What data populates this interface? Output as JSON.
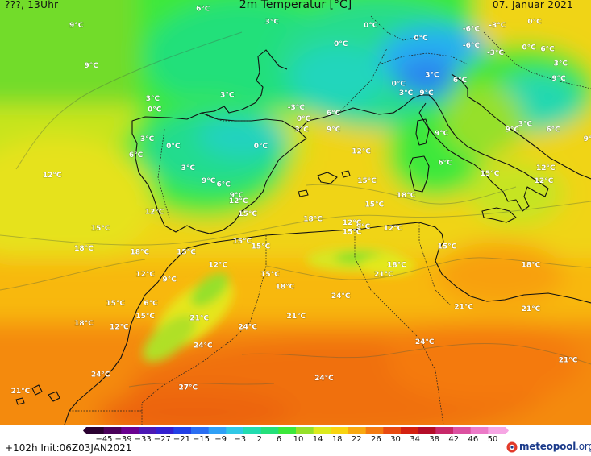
{
  "header": {
    "left": "???, 13Uhr",
    "title": "2m Temperatur [°C]",
    "right": "07. Januar 2021"
  },
  "footer": {
    "run_info": "+102h  Init:06Z03JAN2021",
    "brand_name": "meteopool",
    "brand_suffix": ".org"
  },
  "legend": {
    "ticks": [
      "-45",
      "-39",
      "-33",
      "-27",
      "-21",
      "-15",
      "-9",
      "-3",
      "2",
      "6",
      "10",
      "14",
      "18",
      "22",
      "26",
      "30",
      "34",
      "38",
      "42",
      "46",
      "50"
    ],
    "colors": [
      "#2a0030",
      "#4a005a",
      "#6a0090",
      "#4b18b4",
      "#3320d0",
      "#2240e6",
      "#2a6ef2",
      "#2fa0f6",
      "#30c8e6",
      "#22dcb0",
      "#24e07a",
      "#3ce83a",
      "#96e02a",
      "#dcea1e",
      "#f8d410",
      "#f8a810",
      "#f47a10",
      "#e84a10",
      "#d42010",
      "#b40c28",
      "#c8286a",
      "#dc50a0",
      "#ec7ac8",
      "#f6a6e4"
    ]
  },
  "map": {
    "label_color": "#ffffff",
    "temperature_labels": [
      {
        "text": "6°C",
        "lon": -3.2,
        "lat": 46.3
      },
      {
        "text": "3°C",
        "lon": 0.5,
        "lat": 45.6
      },
      {
        "text": "9°C",
        "lon": -10.0,
        "lat": 45.4
      },
      {
        "text": "0°C",
        "lon": 5.8,
        "lat": 45.4
      },
      {
        "text": "0°C",
        "lon": 8.5,
        "lat": 44.7
      },
      {
        "text": "0°C",
        "lon": 4.2,
        "lat": 44.4
      },
      {
        "text": "-6°C",
        "lon": 11.2,
        "lat": 45.2
      },
      {
        "text": "-3°C",
        "lon": 12.6,
        "lat": 45.4
      },
      {
        "text": "0°C",
        "lon": 14.6,
        "lat": 45.6
      },
      {
        "text": "-6°C",
        "lon": 11.2,
        "lat": 44.3
      },
      {
        "text": "-3°C",
        "lon": 12.5,
        "lat": 43.9
      },
      {
        "text": "0°C",
        "lon": 14.3,
        "lat": 44.2
      },
      {
        "text": "6°C",
        "lon": 15.3,
        "lat": 44.1
      },
      {
        "text": "3°C",
        "lon": 16.0,
        "lat": 43.3
      },
      {
        "text": "6°C",
        "lon": 18.5,
        "lat": 43.0
      },
      {
        "text": "9°C",
        "lon": -9.2,
        "lat": 43.2
      },
      {
        "text": "3°C",
        "lon": 9.1,
        "lat": 42.7
      },
      {
        "text": "9°C",
        "lon": 15.9,
        "lat": 42.5
      },
      {
        "text": "6°C",
        "lon": 10.6,
        "lat": 42.4
      },
      {
        "text": "3°C",
        "lon": 18.6,
        "lat": 42.3
      },
      {
        "text": "0°C",
        "lon": 7.3,
        "lat": 42.2
      },
      {
        "text": "0°C",
        "lon": 18.6,
        "lat": 41.8
      },
      {
        "text": "3°C",
        "lon": -1.9,
        "lat": 41.6
      },
      {
        "text": "3°C",
        "lon": 7.7,
        "lat": 41.7
      },
      {
        "text": "9°C",
        "lon": 8.8,
        "lat": 41.7
      },
      {
        "text": "3°C",
        "lon": -5.9,
        "lat": 41.4
      },
      {
        "text": "0°C",
        "lon": -5.8,
        "lat": 40.8
      },
      {
        "text": "-3°C",
        "lon": 1.8,
        "lat": 40.9
      },
      {
        "text": "6°C",
        "lon": 3.8,
        "lat": 40.6
      },
      {
        "text": "0°C",
        "lon": 2.2,
        "lat": 40.3
      },
      {
        "text": "3°C",
        "lon": 2.1,
        "lat": 39.7
      },
      {
        "text": "9°C",
        "lon": 3.8,
        "lat": 39.7
      },
      {
        "text": "3°C",
        "lon": 14.1,
        "lat": 40.0
      },
      {
        "text": "6°C",
        "lon": 15.6,
        "lat": 39.7
      },
      {
        "text": "9°C",
        "lon": 13.4,
        "lat": 39.7
      },
      {
        "text": "9°C",
        "lon": 9.6,
        "lat": 39.5
      },
      {
        "text": "3°C",
        "lon": -6.2,
        "lat": 39.2
      },
      {
        "text": "9°C",
        "lon": 17.6,
        "lat": 39.2
      },
      {
        "text": "0°C",
        "lon": -4.8,
        "lat": 38.8
      },
      {
        "text": "0°C",
        "lon": -0.1,
        "lat": 38.8
      },
      {
        "text": "6°C",
        "lon": -6.8,
        "lat": 38.3
      },
      {
        "text": "12°C",
        "lon": 5.3,
        "lat": 38.5
      },
      {
        "text": "12°C",
        "lon": 18.4,
        "lat": 38.1
      },
      {
        "text": "6°C",
        "lon": 9.8,
        "lat": 37.9
      },
      {
        "text": "3°C",
        "lon": -4.0,
        "lat": 37.6
      },
      {
        "text": "12°C",
        "lon": 15.2,
        "lat": 37.6
      },
      {
        "text": "15°C",
        "lon": 12.2,
        "lat": 37.3
      },
      {
        "text": "12°C",
        "lon": -11.3,
        "lat": 37.2
      },
      {
        "text": "9°C",
        "lon": -2.9,
        "lat": 36.9
      },
      {
        "text": "15°C",
        "lon": 5.6,
        "lat": 36.9
      },
      {
        "text": "6°C",
        "lon": -2.1,
        "lat": 36.7
      },
      {
        "text": "12°C",
        "lon": 15.1,
        "lat": 36.9
      },
      {
        "text": "9°C",
        "lon": -1.4,
        "lat": 36.1
      },
      {
        "text": "12°C",
        "lon": -1.3,
        "lat": 35.8
      },
      {
        "text": "18°C",
        "lon": 7.7,
        "lat": 36.1
      },
      {
        "text": "15°C",
        "lon": 6.0,
        "lat": 35.6
      },
      {
        "text": "12°C",
        "lon": -5.8,
        "lat": 35.2
      },
      {
        "text": "15°C",
        "lon": -0.8,
        "lat": 35.1
      },
      {
        "text": "18°C",
        "lon": 2.7,
        "lat": 34.8
      },
      {
        "text": "12°C",
        "lon": 4.8,
        "lat": 34.6
      },
      {
        "text": "9°C",
        "lon": 5.4,
        "lat": 34.4
      },
      {
        "text": "12°C",
        "lon": 7.0,
        "lat": 34.3
      },
      {
        "text": "15°C",
        "lon": -8.7,
        "lat": 34.3
      },
      {
        "text": "15°C",
        "lon": 4.8,
        "lat": 34.1
      },
      {
        "text": "15°C",
        "lon": -1.1,
        "lat": 33.6
      },
      {
        "text": "18°C",
        "lon": -9.6,
        "lat": 33.2
      },
      {
        "text": "18°C",
        "lon": -6.6,
        "lat": 33.0
      },
      {
        "text": "15°C",
        "lon": -4.1,
        "lat": 33.0
      },
      {
        "text": "15°C",
        "lon": -0.1,
        "lat": 33.3
      },
      {
        "text": "15°C",
        "lon": 9.9,
        "lat": 33.3
      },
      {
        "text": "12°C",
        "lon": -2.4,
        "lat": 32.3
      },
      {
        "text": "12°C",
        "lon": -6.3,
        "lat": 31.8
      },
      {
        "text": "18°C",
        "lon": 7.2,
        "lat": 32.3
      },
      {
        "text": "18°C",
        "lon": 14.4,
        "lat": 32.3
      },
      {
        "text": "9°C",
        "lon": -5.0,
        "lat": 31.5
      },
      {
        "text": "15°C",
        "lon": 0.4,
        "lat": 31.8
      },
      {
        "text": "21°C",
        "lon": 6.5,
        "lat": 31.8
      },
      {
        "text": "18°C",
        "lon": 1.2,
        "lat": 31.1
      },
      {
        "text": "24°C",
        "lon": 4.2,
        "lat": 30.6
      },
      {
        "text": "15°C",
        "lon": -7.9,
        "lat": 30.2
      },
      {
        "text": "6°C",
        "lon": -6.0,
        "lat": 30.2
      },
      {
        "text": "21°C",
        "lon": 10.8,
        "lat": 30.0
      },
      {
        "text": "21°C",
        "lon": 14.4,
        "lat": 29.9
      },
      {
        "text": "21°C",
        "lon": 1.8,
        "lat": 29.5
      },
      {
        "text": "15°C",
        "lon": -6.3,
        "lat": 29.5
      },
      {
        "text": "21°C",
        "lon": -3.4,
        "lat": 29.4
      },
      {
        "text": "18°C",
        "lon": -9.6,
        "lat": 29.1
      },
      {
        "text": "12°C",
        "lon": -7.7,
        "lat": 28.9
      },
      {
        "text": "24°C",
        "lon": -0.8,
        "lat": 28.9
      },
      {
        "text": "24°C",
        "lon": 8.7,
        "lat": 28.1
      },
      {
        "text": "24°C",
        "lon": -3.2,
        "lat": 27.9
      },
      {
        "text": "21°C",
        "lon": 16.4,
        "lat": 27.1
      },
      {
        "text": "24°C",
        "lon": -8.7,
        "lat": 26.3
      },
      {
        "text": "24°C",
        "lon": 3.3,
        "lat": 26.1
      },
      {
        "text": "27°C",
        "lon": -4.0,
        "lat": 25.6
      },
      {
        "text": "21°C",
        "lon": -13.0,
        "lat": 25.4
      }
    ]
  }
}
